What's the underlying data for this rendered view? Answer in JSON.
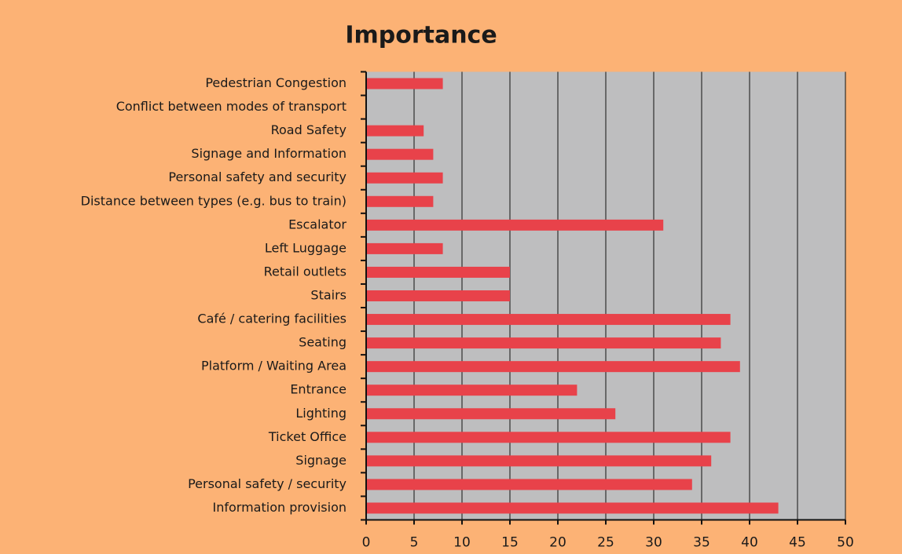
{
  "chart_data": {
    "type": "barh",
    "title": "Importance",
    "categories": [
      "Pedestrian Congestion",
      "Conflict between modes of transport",
      "Road Safety",
      "Signage and Information",
      "Personal safety and security",
      "Distance between types (e.g. bus to train)",
      "Escalator",
      "Left Luggage",
      "Retail outlets",
      "Stairs",
      "Café / catering facilities",
      "Seating",
      "Platform / Waiting Area",
      "Entrance",
      "Lighting",
      "Ticket Office",
      "Signage",
      "Personal safety / security",
      "Information provision"
    ],
    "values": [
      8,
      0,
      6,
      7,
      8,
      7,
      31,
      8,
      15,
      15,
      38,
      37,
      39,
      22,
      26,
      38,
      36,
      34,
      43
    ],
    "color": "#e8424a",
    "xlim": [
      0,
      50
    ],
    "xticks": [
      0,
      5,
      10,
      15,
      20,
      25,
      30,
      35,
      40,
      45,
      50
    ],
    "grid": true
  }
}
